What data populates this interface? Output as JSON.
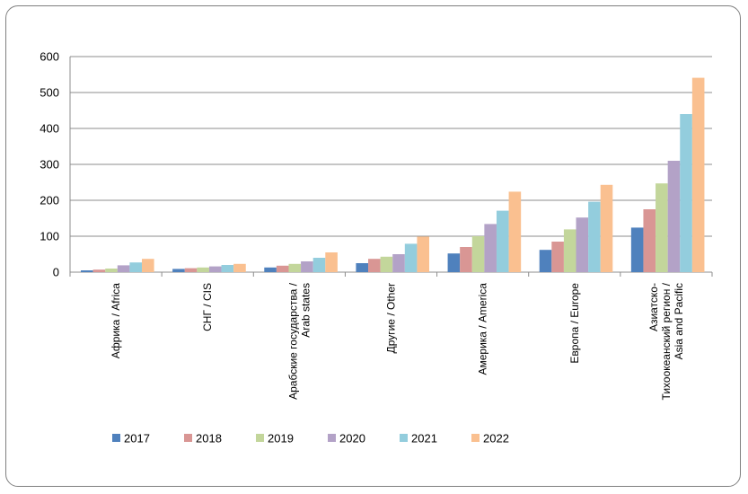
{
  "chart_data": {
    "type": "bar",
    "ylim": [
      0,
      600
    ],
    "yticks": [
      0,
      100,
      200,
      300,
      400,
      500,
      600
    ],
    "grid": true,
    "legend_position": "bottom",
    "categories": [
      [
        "Африка / Africa"
      ],
      [
        "СНГ / CIS"
      ],
      [
        "Арабские государства /",
        "Arab states"
      ],
      [
        "Другие / Other"
      ],
      [
        "Америка / America"
      ],
      [
        "Европа / Europe"
      ],
      [
        "Азиатско-",
        "Тихоокеанский регион /",
        "Asia and Pacific"
      ]
    ],
    "series": [
      {
        "name": "2017",
        "color": "#4f81bd",
        "values": [
          5,
          9,
          13,
          25,
          52,
          62,
          124
        ]
      },
      {
        "name": "2018",
        "color": "#d99694",
        "values": [
          7,
          11,
          18,
          37,
          70,
          85,
          175
        ]
      },
      {
        "name": "2019",
        "color": "#c3d69b",
        "values": [
          10,
          13,
          23,
          43,
          100,
          119,
          247
        ]
      },
      {
        "name": "2020",
        "color": "#b3a2c7",
        "values": [
          19,
          16,
          30,
          50,
          134,
          152,
          310
        ]
      },
      {
        "name": "2021",
        "color": "#93cddd",
        "values": [
          27,
          20,
          40,
          79,
          171,
          196,
          440
        ]
      },
      {
        "name": "2022",
        "color": "#fac090",
        "values": [
          37,
          23,
          55,
          99,
          224,
          243,
          541
        ]
      }
    ]
  }
}
